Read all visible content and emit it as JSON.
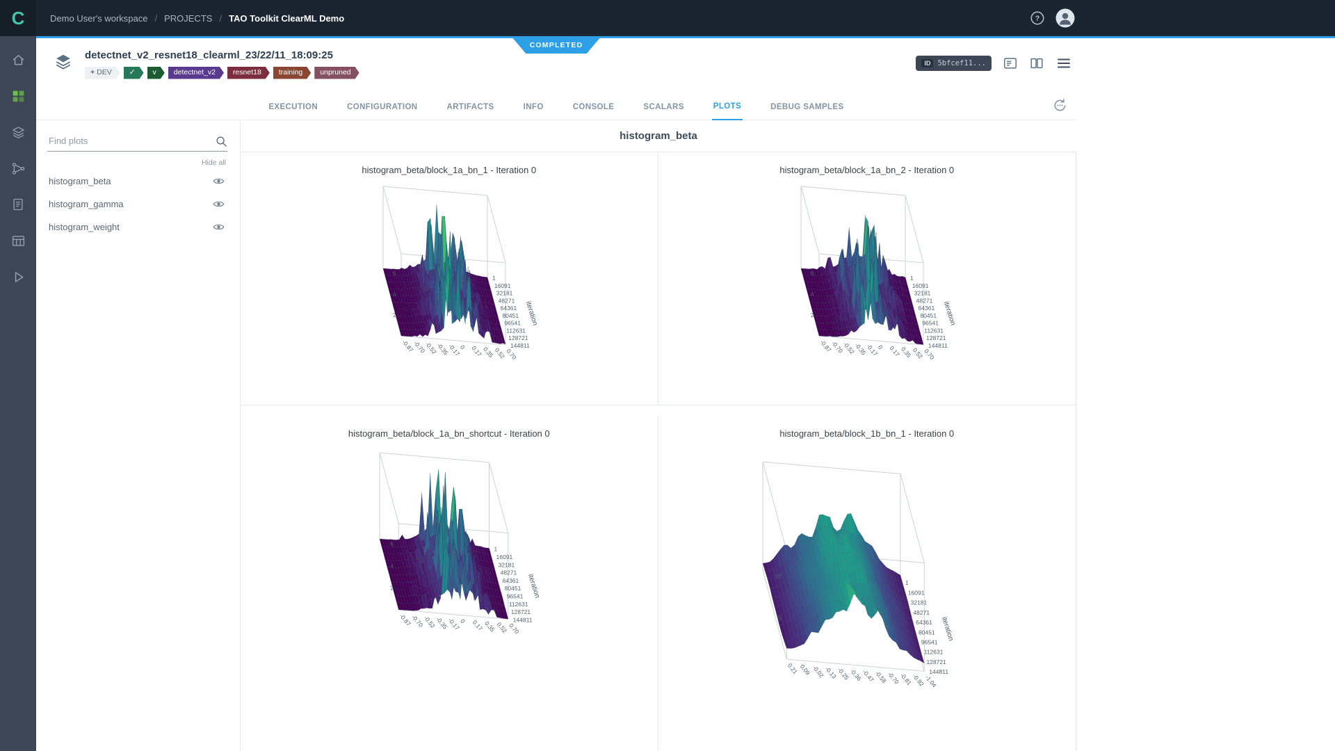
{
  "colors": {
    "accent_blue": "#2d9fe6",
    "topbar_bg": "#1b2531",
    "sidebar_bg": "#3d4654",
    "status_completed": "#2d9fe6"
  },
  "topbar": {
    "breadcrumbs": [
      {
        "label": "Demo User's workspace"
      },
      {
        "label": "PROJECTS"
      },
      {
        "label": "TAO Toolkit ClearML Demo"
      }
    ]
  },
  "sidebar": {
    "logo_letter": "C",
    "items": [
      {
        "icon": "home",
        "name": "home",
        "active": false
      },
      {
        "icon": "projects",
        "name": "projects",
        "active": true
      },
      {
        "icon": "experiments",
        "name": "experiments",
        "active": false
      },
      {
        "icon": "pipelines",
        "name": "pipelines",
        "active": false
      },
      {
        "icon": "reports",
        "name": "reports",
        "active": false
      },
      {
        "icon": "datasets",
        "name": "datasets",
        "active": false
      },
      {
        "icon": "applications",
        "name": "applications",
        "active": false
      }
    ]
  },
  "experiment": {
    "status_badge": "COMPLETED",
    "title": "detectnet_v2_resnet18_clearml_23/22/11_18:09:25",
    "id_chip": {
      "label": "ID",
      "value": "5bfcef11..."
    },
    "tags": [
      {
        "label": "DEV",
        "prefix": "+",
        "style": "outline"
      },
      {
        "label": "✓",
        "color": "#27795b"
      },
      {
        "label": "v",
        "color": "#1d5c30"
      },
      {
        "label": "detectnet_v2",
        "color": "#5a3a8e"
      },
      {
        "label": "resnet18",
        "color": "#7c2d3e"
      },
      {
        "label": "training",
        "color": "#8a4630"
      },
      {
        "label": "unpruned",
        "color": "#845163"
      }
    ]
  },
  "tabs": [
    {
      "label": "EXECUTION",
      "active": false
    },
    {
      "label": "CONFIGURATION",
      "active": false
    },
    {
      "label": "ARTIFACTS",
      "active": false
    },
    {
      "label": "INFO",
      "active": false
    },
    {
      "label": "CONSOLE",
      "active": false
    },
    {
      "label": "SCALARS",
      "active": false
    },
    {
      "label": "PLOTS",
      "active": true
    },
    {
      "label": "DEBUG SAMPLES",
      "active": false
    }
  ],
  "plot_panel": {
    "search_placeholder": "Find plots",
    "hide_all_label": "Hide all",
    "items": [
      {
        "label": "histogram_beta",
        "visible": true
      },
      {
        "label": "histogram_gamma",
        "visible": true
      },
      {
        "label": "histogram_weight",
        "visible": true
      }
    ]
  },
  "plots": {
    "group_title": "histogram_beta"
  },
  "chart_data": [
    {
      "type": "surface",
      "title": "histogram_beta/block_1a_bn_1 - Iteration 0",
      "profile": "spiky",
      "seed": 11,
      "x_ticks": [
        "-0.87",
        "-0.70",
        "-0.52",
        "-0.35",
        "-0.17",
        "0",
        "0.17",
        "0.35",
        "0.52",
        "0.70"
      ],
      "ylabel": "iteration",
      "y_ticks": [
        "1",
        "16091",
        "32181",
        "48271",
        "64361",
        "80451",
        "96541",
        "112631",
        "128721",
        "144811"
      ],
      "z_ticks": [
        "6",
        "4",
        "2"
      ]
    },
    {
      "type": "surface",
      "title": "histogram_beta/block_1a_bn_2 - Iteration 0",
      "profile": "spiky",
      "seed": 23,
      "x_ticks": [
        "-0.87",
        "-0.70",
        "-0.52",
        "-0.35",
        "-0.17",
        "0",
        "0.17",
        "0.35",
        "0.52",
        "0.70"
      ],
      "ylabel": "iteration",
      "y_ticks": [
        "1",
        "16091",
        "32181",
        "48271",
        "64361",
        "80451",
        "96541",
        "112631",
        "128721",
        "144811"
      ],
      "z_ticks": [
        "6",
        "4",
        "2"
      ]
    },
    {
      "type": "surface",
      "title": "histogram_beta/block_1a_bn_shortcut - Iteration 0",
      "profile": "spiky",
      "seed": 37,
      "x_ticks": [
        "-0.87",
        "-0.70",
        "-0.52",
        "-0.35",
        "-0.17",
        "0",
        "0.17",
        "0.35",
        "0.52",
        "0.70"
      ],
      "ylabel": "iteration",
      "y_ticks": [
        "1",
        "16091",
        "32181",
        "48271",
        "64361",
        "80451",
        "96541",
        "112631",
        "128721",
        "144811"
      ],
      "z_ticks": [
        "6",
        "4",
        "2"
      ]
    },
    {
      "type": "surface",
      "title": "histogram_beta/block_1b_bn_1 - Iteration 0",
      "profile": "ridge",
      "seed": 53,
      "x_ticks": [
        "0.21",
        "0.09",
        "-0.02",
        "-0.13",
        "-0.25",
        "-0.36",
        "-0.47",
        "-0.58",
        "-0.70",
        "-0.81",
        "-0.92",
        "-1.04"
      ],
      "ylabel": "iteration",
      "y_ticks": [
        "1",
        "16091",
        "32181",
        "48271",
        "64361",
        "80451",
        "96541",
        "112631",
        "128721",
        "144811"
      ],
      "z_ticks": [
        "10",
        "5"
      ]
    }
  ]
}
